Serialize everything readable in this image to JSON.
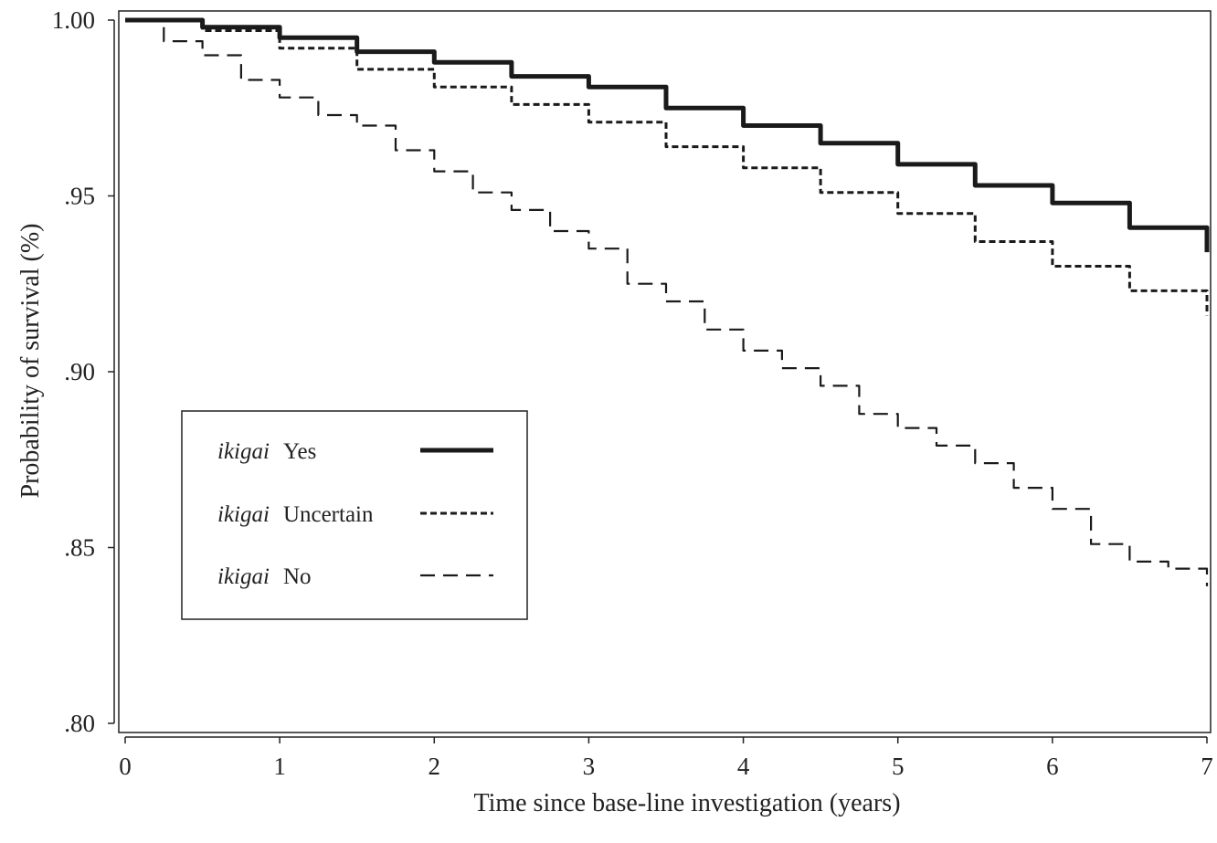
{
  "chart_data": {
    "type": "line",
    "title": "",
    "xlabel": "Time since base-line investigation (years)",
    "ylabel": "Probability of survival (%)",
    "xlim": [
      0,
      7
    ],
    "ylim": [
      0.8,
      1.0
    ],
    "xticks": [
      0,
      1,
      2,
      3,
      4,
      5,
      6,
      7
    ],
    "xtick_labels": [
      "0",
      "1",
      "2",
      "3",
      "4",
      "5",
      "6",
      "7"
    ],
    "yticks": [
      0.8,
      0.85,
      0.9,
      0.95,
      1.0
    ],
    "ytick_labels": [
      ".80",
      ".85",
      ".90",
      ".95",
      "1.00"
    ],
    "grid": false,
    "legend_position": "lower-left",
    "legend_prefix": "ikigai",
    "series": [
      {
        "name": "Yes",
        "style": "solid",
        "x": [
          0,
          0.5,
          1.0,
          1.5,
          2.0,
          2.5,
          3.0,
          3.5,
          4.0,
          4.5,
          5.0,
          5.5,
          6.0,
          6.5,
          7.0
        ],
        "y": [
          1.0,
          0.998,
          0.995,
          0.991,
          0.988,
          0.984,
          0.981,
          0.975,
          0.97,
          0.965,
          0.959,
          0.953,
          0.948,
          0.941,
          0.934
        ]
      },
      {
        "name": "Uncertain",
        "style": "dotted",
        "x": [
          0,
          0.5,
          1.0,
          1.5,
          2.0,
          2.5,
          3.0,
          3.5,
          4.0,
          4.5,
          5.0,
          5.5,
          6.0,
          6.5,
          7.0
        ],
        "y": [
          1.0,
          0.997,
          0.992,
          0.986,
          0.981,
          0.976,
          0.971,
          0.964,
          0.958,
          0.951,
          0.945,
          0.937,
          0.93,
          0.923,
          0.916
        ]
      },
      {
        "name": "No",
        "style": "dashed",
        "x": [
          0,
          0.25,
          0.5,
          0.75,
          1.0,
          1.25,
          1.5,
          1.75,
          2.0,
          2.25,
          2.5,
          2.75,
          3.0,
          3.25,
          3.5,
          3.75,
          4.0,
          4.25,
          4.5,
          4.75,
          5.0,
          5.25,
          5.5,
          5.75,
          6.0,
          6.25,
          6.5,
          6.75,
          7.0
        ],
        "y": [
          1.0,
          0.994,
          0.99,
          0.983,
          0.978,
          0.973,
          0.97,
          0.963,
          0.957,
          0.951,
          0.946,
          0.94,
          0.935,
          0.925,
          0.92,
          0.912,
          0.906,
          0.901,
          0.896,
          0.888,
          0.884,
          0.879,
          0.874,
          0.867,
          0.861,
          0.851,
          0.846,
          0.844,
          0.839
        ]
      }
    ]
  }
}
